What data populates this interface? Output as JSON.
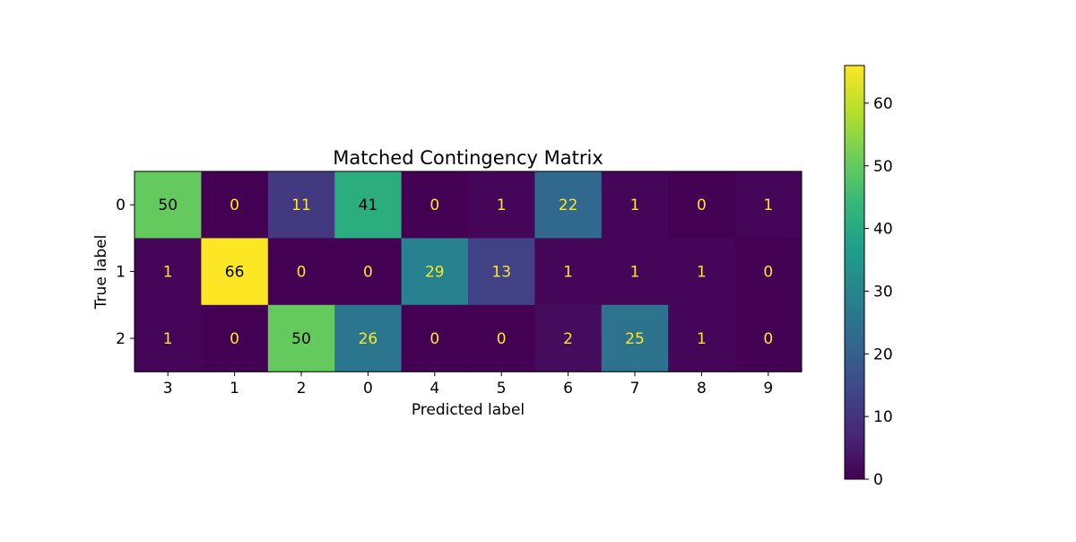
{
  "chart_data": {
    "type": "heatmap",
    "title": "Matched Contingency Matrix",
    "xlabel": "Predicted label",
    "ylabel": "True label",
    "x_tick_labels": [
      "3",
      "1",
      "2",
      "0",
      "4",
      "5",
      "6",
      "7",
      "8",
      "9"
    ],
    "y_tick_labels": [
      "0",
      "1",
      "2"
    ],
    "values": [
      [
        50,
        0,
        11,
        41,
        0,
        1,
        22,
        1,
        0,
        1
      ],
      [
        1,
        66,
        0,
        0,
        29,
        13,
        1,
        1,
        1,
        0
      ],
      [
        1,
        0,
        50,
        26,
        0,
        0,
        2,
        25,
        1,
        0
      ]
    ],
    "colormap": "viridis",
    "value_range": [
      0,
      66
    ],
    "colorbar_ticks": [
      0,
      10,
      20,
      30,
      40,
      50,
      60
    ],
    "annotation_colors": {
      "on_dark": "#fde725",
      "on_light": "#000000"
    },
    "grid": false,
    "colorbar_position": "right"
  }
}
